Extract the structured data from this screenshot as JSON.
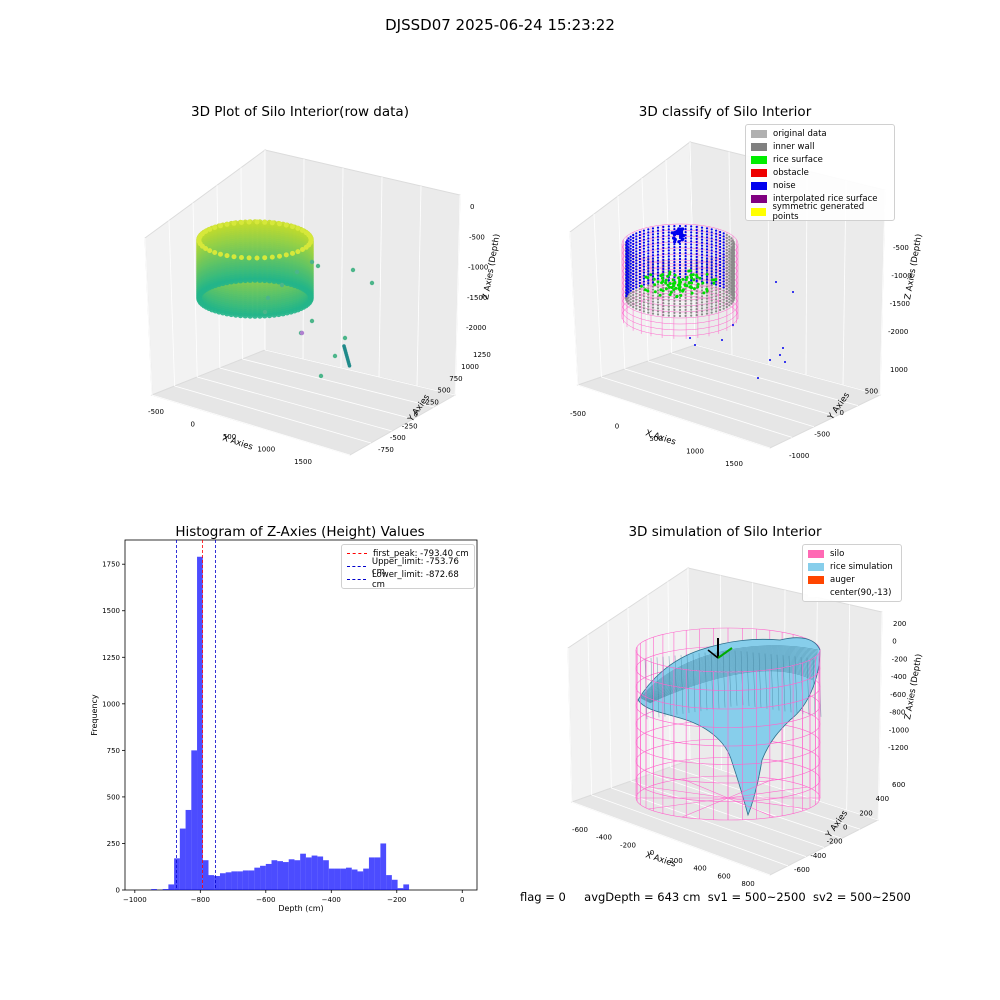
{
  "suptitle": "DJSSD07 2025-06-24 15:23:22",
  "plot1": {
    "title": "3D Plot of Silo Interior(row data)",
    "x_ticks": [
      "-500",
      "0",
      "500",
      "1000",
      "1500"
    ],
    "y_ticks": [
      "-750",
      "-500",
      "-250",
      "0",
      "250",
      "500",
      "750",
      "1000",
      "1250"
    ],
    "z_ticks": [
      "0",
      "-500",
      "-1000",
      "-1500",
      "-2000"
    ],
    "xlabel": "X Axies",
    "ylabel": "Y Axies",
    "zlabel": "Z Axies (Depth)"
  },
  "plot2": {
    "title": "3D classify of Silo Interior",
    "x_ticks": [
      "-500",
      "0",
      "500",
      "1000",
      "1500"
    ],
    "y_ticks": [
      "-1000",
      "-500",
      "0",
      "500",
      "1000"
    ],
    "z_ticks": [
      "-500",
      "-1000",
      "-1500",
      "-2000"
    ],
    "xlabel": "X Axies",
    "ylabel": "Y Axies",
    "zlabel": "Z Axies (Depth)",
    "legend": [
      {
        "label": "original data",
        "color": "#b0b0b0"
      },
      {
        "label": "inner wall",
        "color": "#808080"
      },
      {
        "label": "rice surface",
        "color": "#00ee00"
      },
      {
        "label": "obstacle",
        "color": "#ee0000"
      },
      {
        "label": "noise",
        "color": "#0000ee"
      },
      {
        "label": "interpolated rice surface",
        "color": "#800080"
      },
      {
        "label": "symmetric generated points",
        "color": "#ffff00"
      }
    ]
  },
  "plot4": {
    "title": "3D simulation of Silo Interior",
    "x_ticks": [
      "-600",
      "-400",
      "-200",
      "0",
      "200",
      "400",
      "600",
      "800"
    ],
    "y_ticks": [
      "-600",
      "-400",
      "-200",
      "0",
      "200",
      "400",
      "600"
    ],
    "z_ticks": [
      "200",
      "0",
      "-200",
      "-400",
      "-600",
      "-800",
      "-1000",
      "-1200"
    ],
    "xlabel": "X Axies",
    "ylabel": "Y Axies",
    "zlabel": "Z Axies (Depth)",
    "legend": [
      {
        "label": "silo",
        "color": "#ff69b4"
      },
      {
        "label": "rice simulation",
        "color": "#87ceeb"
      },
      {
        "label": "auger",
        "color": "#ff4500"
      },
      {
        "label": "center(90,-13)",
        "color": "#ffffff"
      }
    ]
  },
  "chart_data": {
    "type": "bar",
    "title": "Histogram of Z-Axies (Height) Values",
    "xlabel": "Depth (cm)",
    "ylabel": "Frequency",
    "xlim": [
      -1030,
      45
    ],
    "ylim": [
      0,
      1880
    ],
    "x_ticks": [
      -1000,
      -800,
      -600,
      -400,
      -200,
      0
    ],
    "x_tick_labels": [
      "−1000",
      "−800",
      "−600",
      "−400",
      "−200",
      "0"
    ],
    "y_ticks": [
      0,
      250,
      500,
      750,
      1000,
      1250,
      1500,
      1750
    ],
    "bin_start": -985,
    "bin_width": 17.5,
    "values": [
      0,
      0,
      5,
      0,
      5,
      30,
      170,
      330,
      430,
      750,
      1790,
      160,
      80,
      75,
      90,
      95,
      100,
      100,
      105,
      105,
      120,
      130,
      140,
      160,
      155,
      150,
      165,
      160,
      195,
      175,
      185,
      180,
      160,
      115,
      115,
      115,
      120,
      110,
      100,
      115,
      175,
      175,
      250,
      80,
      55,
      10,
      30
    ],
    "lines": [
      {
        "label": "first_peak: -793.40 cm",
        "value": -793.4,
        "color": "#ff0000"
      },
      {
        "label": "Upper_limit: -753.76 cm",
        "value": -753.76,
        "color": "#0000cc"
      },
      {
        "label": "Lower_limit: -872.68 cm",
        "value": -872.68,
        "color": "#0000cc"
      }
    ]
  },
  "footer": {
    "flag": "flag = 0",
    "avg": "avgDepth = 643 cm",
    "sv1": "sv1 = 500~2500",
    "sv2": "sv2 = 500~2500"
  }
}
